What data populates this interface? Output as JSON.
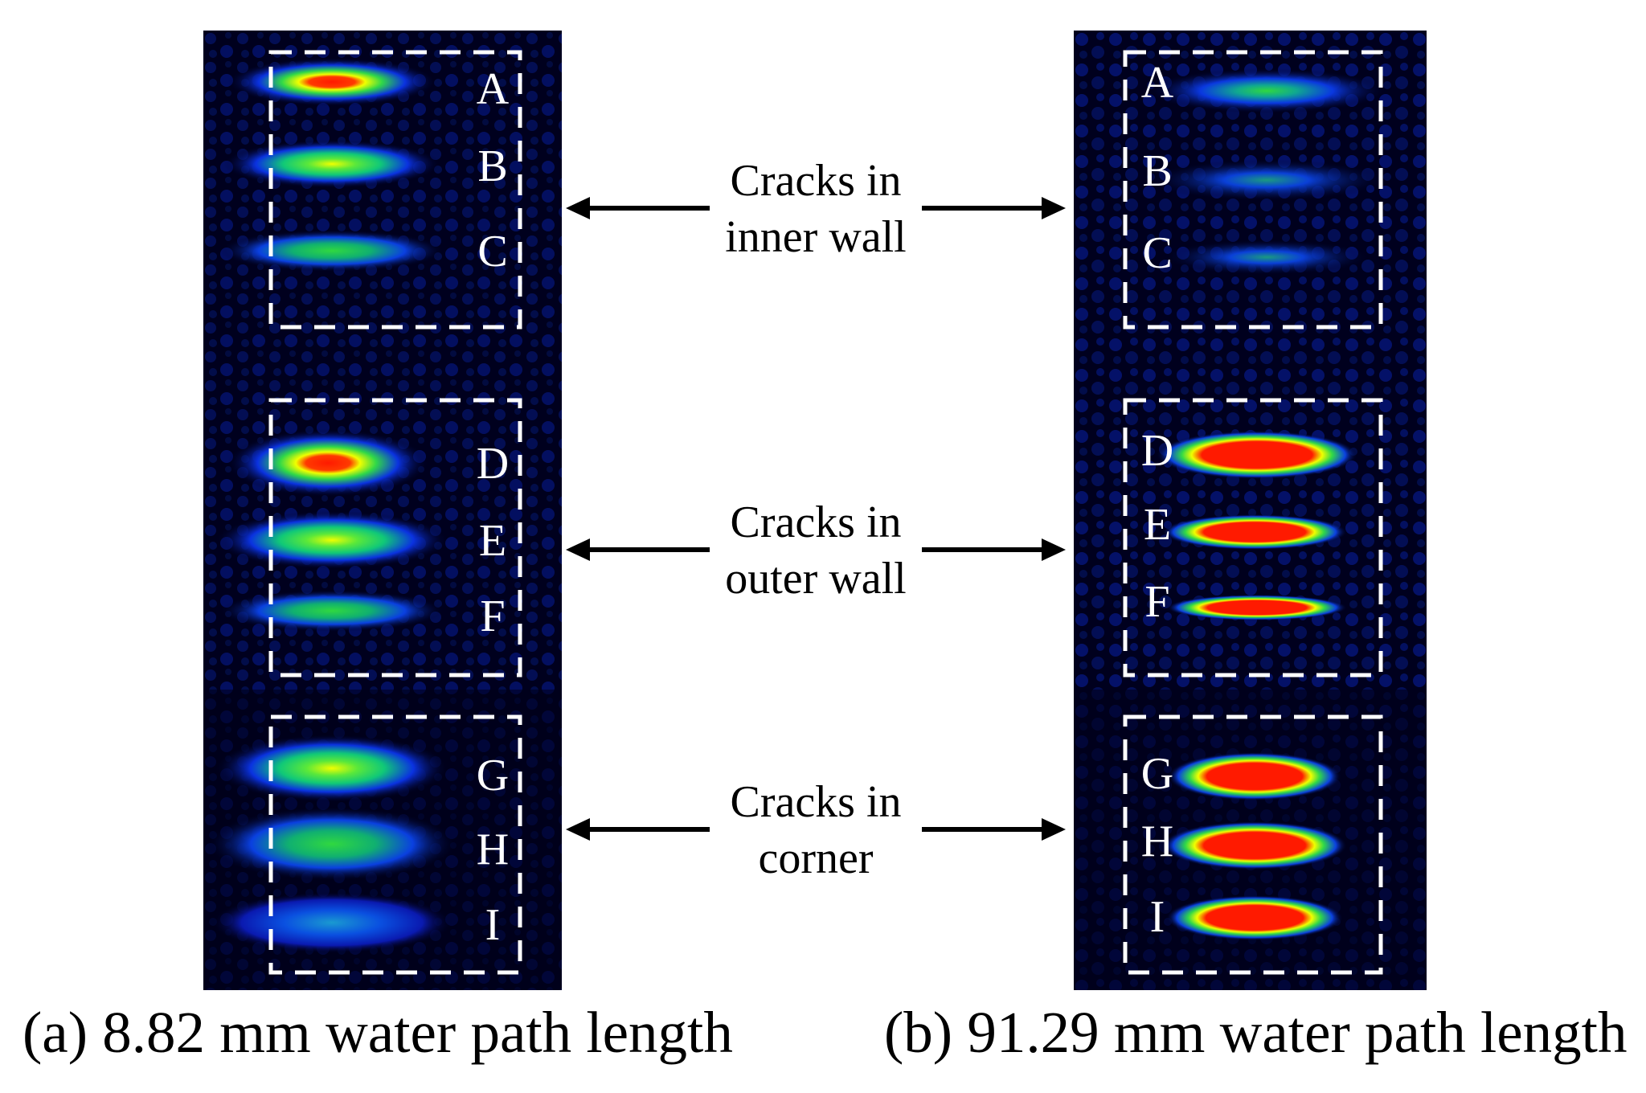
{
  "panels": [
    {
      "caption": "(a) 8.82 mm water path length",
      "groups": [
        {
          "labels": [
            "A",
            "B",
            "C"
          ]
        },
        {
          "labels": [
            "D",
            "E",
            "F"
          ]
        },
        {
          "labels": [
            "G",
            "H",
            "I"
          ]
        }
      ]
    },
    {
      "caption": "(b) 91.29 mm water path length",
      "groups": [
        {
          "labels": [
            "A",
            "B",
            "C"
          ]
        },
        {
          "labels": [
            "D",
            "E",
            "F"
          ]
        },
        {
          "labels": [
            "G",
            "H",
            "I"
          ]
        }
      ]
    }
  ],
  "annotations": [
    {
      "line1": "Cracks in",
      "line2": "inner wall"
    },
    {
      "line1": "Cracks in",
      "line2": "outer wall"
    },
    {
      "line1": "Cracks in",
      "line2": "corner"
    }
  ],
  "colors": {
    "background": "#00001e",
    "blue": "#0a22d8",
    "cyan": "#00c8ff",
    "green": "#28dc3c",
    "yellow": "#f0ff00",
    "red": "#ff1a00",
    "frame": "#ffffff",
    "arrow": "#000000"
  }
}
